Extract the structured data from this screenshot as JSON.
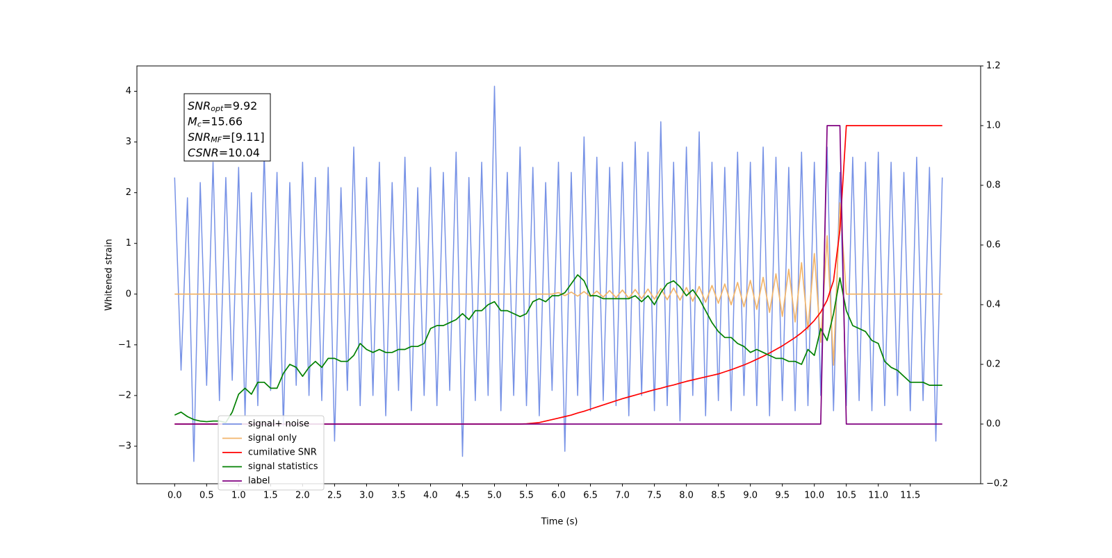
{
  "chart_data": {
    "type": "line",
    "xlabel": "Time (s)",
    "ylabel": "Whitened strain",
    "x": [
      0,
      0.1,
      0.2,
      0.3,
      0.4,
      0.5,
      0.6,
      0.7,
      0.8,
      0.9,
      1,
      1.1,
      1.2,
      1.3,
      1.4,
      1.5,
      1.6,
      1.7,
      1.8,
      1.9,
      2,
      2.1,
      2.2,
      2.3,
      2.4,
      2.5,
      2.6,
      2.7,
      2.8,
      2.9,
      3,
      3.1,
      3.2,
      3.3,
      3.4,
      3.5,
      3.6,
      3.7,
      3.8,
      3.9,
      4,
      4.1,
      4.2,
      4.3,
      4.4,
      4.5,
      4.6,
      4.7,
      4.8,
      4.9,
      5,
      5.1,
      5.2,
      5.3,
      5.4,
      5.5,
      5.6,
      5.7,
      5.8,
      5.9,
      6,
      6.1,
      6.2,
      6.3,
      6.4,
      6.5,
      6.6,
      6.7,
      6.8,
      6.9,
      7,
      7.1,
      7.2,
      7.3,
      7.4,
      7.5,
      7.6,
      7.7,
      7.8,
      7.9,
      8,
      8.1,
      8.2,
      8.3,
      8.4,
      8.5,
      8.6,
      8.7,
      8.8,
      8.9,
      9,
      9.1,
      9.2,
      9.3,
      9.4,
      9.5,
      9.6,
      9.7,
      9.8,
      9.9,
      10,
      10.1,
      10.2,
      10.3,
      10.4,
      10.5,
      10.6,
      10.7,
      10.8,
      10.9,
      11,
      11.1,
      11.2,
      11.3,
      11.4,
      11.5,
      11.6,
      11.7,
      11.8,
      11.9,
      12
    ],
    "series": [
      {
        "name": "signal+ noise",
        "color": "#7792e6",
        "axis": "y",
        "values": [
          2.3,
          -1.5,
          1.9,
          -3.3,
          2.2,
          -1.8,
          2.6,
          -2.1,
          2.3,
          -1.7,
          2.5,
          -2.4,
          2.0,
          -2.2,
          2.8,
          -1.9,
          2.4,
          -2.6,
          2.2,
          -1.8,
          2.6,
          -2.0,
          2.3,
          -2.1,
          2.5,
          -2.9,
          2.1,
          -1.9,
          2.9,
          -2.2,
          2.3,
          -2.0,
          2.6,
          -2.4,
          2.2,
          -1.9,
          2.7,
          -2.3,
          2.1,
          -2.0,
          2.5,
          -2.2,
          2.4,
          -1.9,
          2.8,
          -3.2,
          2.3,
          -2.1,
          2.6,
          -2.0,
          4.1,
          -2.3,
          2.4,
          -2.0,
          2.9,
          -2.2,
          2.5,
          -2.4,
          2.2,
          -1.9,
          2.6,
          -3.1,
          2.4,
          -2.0,
          3.1,
          -2.3,
          2.7,
          -2.1,
          2.5,
          -2.2,
          2.6,
          -2.4,
          3.0,
          -2.0,
          2.8,
          -2.3,
          3.4,
          -2.2,
          2.6,
          -2.5,
          2.9,
          -2.0,
          3.2,
          -2.4,
          2.6,
          -2.1,
          2.5,
          -2.3,
          2.8,
          -2.0,
          2.6,
          -2.2,
          2.9,
          -2.4,
          2.7,
          -2.1,
          2.5,
          -2.3,
          2.8,
          -2.2,
          2.6,
          -2.0,
          2.9,
          -2.3,
          2.4,
          -2.2,
          2.7,
          -2.1,
          2.6,
          -2.3,
          2.8,
          -2.2,
          2.6,
          -2.0,
          2.4,
          -2.3,
          2.7,
          -2.1,
          2.5,
          -2.9,
          2.3
        ]
      },
      {
        "name": "signal only",
        "color": "#f2b56a",
        "axis": "y",
        "values": [
          0,
          0,
          0,
          0,
          0,
          0,
          0,
          0,
          0,
          0,
          0,
          0,
          0,
          0,
          0,
          0,
          0,
          0,
          0,
          0,
          0,
          0,
          0,
          0,
          0,
          0,
          0,
          0,
          0,
          0,
          0,
          0,
          0,
          0,
          0,
          0,
          0,
          0,
          0,
          0,
          0,
          0,
          0,
          0,
          0,
          0,
          0,
          0,
          0,
          0,
          0,
          0,
          0,
          0,
          0,
          0,
          0,
          0,
          0,
          0,
          0.03,
          -0.03,
          0.04,
          -0.04,
          0.05,
          -0.05,
          0.06,
          -0.06,
          0.07,
          -0.07,
          0.08,
          -0.08,
          0.09,
          -0.09,
          0.1,
          -0.1,
          0.11,
          -0.11,
          0.12,
          -0.12,
          0.13,
          -0.14,
          0.15,
          -0.16,
          0.17,
          -0.18,
          0.2,
          -0.21,
          0.23,
          -0.25,
          0.27,
          -0.3,
          0.33,
          -0.36,
          0.4,
          -0.44,
          0.49,
          -0.55,
          0.62,
          -0.7,
          0.8,
          -0.95,
          1.15,
          -1.4,
          1.8,
          0,
          0,
          0,
          0,
          0,
          0,
          0,
          0,
          0,
          0,
          0,
          0,
          0,
          0,
          0,
          0
        ]
      },
      {
        "name": "cumilative SNR",
        "color": "#ff0000",
        "axis": "y2",
        "values": [
          0,
          0,
          0,
          0,
          0,
          0,
          0,
          0,
          0,
          0,
          0,
          0,
          0,
          0,
          0,
          0,
          0,
          0,
          0,
          0,
          0,
          0,
          0,
          0,
          0,
          0,
          0,
          0,
          0,
          0,
          0,
          0,
          0,
          0,
          0,
          0,
          0,
          0,
          0,
          0,
          0,
          0,
          0,
          0,
          0,
          0,
          0,
          0,
          0,
          0,
          0,
          0,
          0,
          0,
          0,
          0.001,
          0.003,
          0.005,
          0.01,
          0.015,
          0.02,
          0.025,
          0.03,
          0.037,
          0.043,
          0.05,
          0.057,
          0.064,
          0.071,
          0.078,
          0.085,
          0.091,
          0.097,
          0.103,
          0.109,
          0.115,
          0.12,
          0.126,
          0.131,
          0.137,
          0.143,
          0.148,
          0.153,
          0.158,
          0.163,
          0.168,
          0.175,
          0.182,
          0.19,
          0.198,
          0.207,
          0.217,
          0.227,
          0.238,
          0.25,
          0.262,
          0.276,
          0.29,
          0.306,
          0.325,
          0.347,
          0.375,
          0.415,
          0.48,
          0.65,
          1,
          1,
          1,
          1,
          1,
          1,
          1,
          1,
          1,
          1,
          1,
          1,
          1,
          1,
          1,
          1
        ]
      },
      {
        "name": "signal statistics",
        "color": "#008000",
        "axis": "y2",
        "values": [
          0.03,
          0.04,
          0.025,
          0.015,
          0.01,
          0.008,
          0.01,
          0.01,
          0.005,
          0.04,
          0.1,
          0.12,
          0.1,
          0.14,
          0.14,
          0.12,
          0.12,
          0.17,
          0.2,
          0.19,
          0.16,
          0.19,
          0.21,
          0.19,
          0.22,
          0.22,
          0.21,
          0.21,
          0.23,
          0.27,
          0.25,
          0.24,
          0.25,
          0.24,
          0.24,
          0.25,
          0.25,
          0.26,
          0.26,
          0.27,
          0.32,
          0.33,
          0.33,
          0.34,
          0.35,
          0.37,
          0.35,
          0.38,
          0.38,
          0.4,
          0.41,
          0.38,
          0.38,
          0.37,
          0.36,
          0.37,
          0.41,
          0.42,
          0.41,
          0.43,
          0.43,
          0.44,
          0.47,
          0.5,
          0.48,
          0.43,
          0.43,
          0.42,
          0.42,
          0.42,
          0.42,
          0.42,
          0.43,
          0.41,
          0.43,
          0.4,
          0.44,
          0.47,
          0.48,
          0.46,
          0.43,
          0.45,
          0.42,
          0.38,
          0.34,
          0.31,
          0.29,
          0.29,
          0.27,
          0.26,
          0.24,
          0.25,
          0.24,
          0.23,
          0.22,
          0.22,
          0.21,
          0.21,
          0.2,
          0.25,
          0.23,
          0.32,
          0.28,
          0.37,
          0.49,
          0.38,
          0.33,
          0.32,
          0.31,
          0.28,
          0.27,
          0.21,
          0.19,
          0.18,
          0.16,
          0.14,
          0.14,
          0.14,
          0.13,
          0.13,
          0.13
        ]
      },
      {
        "name": "label",
        "color": "#800080",
        "axis": "y2",
        "values": [
          0,
          0,
          0,
          0,
          0,
          0,
          0,
          0,
          0,
          0,
          0,
          0,
          0,
          0,
          0,
          0,
          0,
          0,
          0,
          0,
          0,
          0,
          0,
          0,
          0,
          0,
          0,
          0,
          0,
          0,
          0,
          0,
          0,
          0,
          0,
          0,
          0,
          0,
          0,
          0,
          0,
          0,
          0,
          0,
          0,
          0,
          0,
          0,
          0,
          0,
          0,
          0,
          0,
          0,
          0,
          0,
          0,
          0,
          0,
          0,
          0,
          0,
          0,
          0,
          0,
          0,
          0,
          0,
          0,
          0,
          0,
          0,
          0,
          0,
          0,
          0,
          0,
          0,
          0,
          0,
          0,
          0,
          0,
          0,
          0,
          0,
          0,
          0,
          0,
          0,
          0,
          0,
          0,
          0,
          0,
          0,
          0,
          0,
          0,
          0,
          0,
          0,
          1,
          1,
          1,
          0,
          0,
          0,
          0,
          0,
          0,
          0,
          0,
          0,
          0,
          0,
          0,
          0,
          0,
          0,
          0
        ]
      }
    ],
    "xlim": [
      -0.59,
      12.6
    ],
    "xticks": [
      {
        "value": 0,
        "label": "0.0"
      },
      0.5,
      {
        "value": 1,
        "label": "1.0"
      },
      1.5,
      {
        "value": 2,
        "label": "2.0"
      },
      2.5,
      {
        "value": 3,
        "label": "3.0"
      },
      3.5,
      {
        "value": 4,
        "label": "4.0"
      },
      4.5,
      {
        "value": 5,
        "label": "5.0"
      },
      5.5,
      {
        "value": 6,
        "label": "6.0"
      },
      6.5,
      {
        "value": 7,
        "label": "7.0"
      },
      7.5,
      {
        "value": 8,
        "label": "8.0"
      },
      8.5,
      {
        "value": 9,
        "label": "9.0"
      },
      9.5,
      {
        "value": 10,
        "label": "10.0"
      },
      10.5,
      {
        "value": 11,
        "label": "11.0"
      },
      11.5
    ],
    "ylim": [
      -3.74,
      4.5
    ],
    "yticks": [
      {
        "value": -3,
        "label": "−3"
      },
      {
        "value": -2,
        "label": "−2"
      },
      {
        "value": -1,
        "label": "−1"
      },
      0,
      1,
      2,
      3,
      4
    ],
    "y2lim": [
      -0.2,
      1.2
    ],
    "y2ticks": [
      {
        "value": -0.2,
        "label": "−0.2"
      },
      {
        "value": 0,
        "label": "0.0"
      },
      0.2,
      0.4,
      0.6,
      0.8,
      {
        "value": 1,
        "label": "1.0"
      },
      1.2
    ],
    "legend": "lower left",
    "annotations": [
      {
        "main": "SNR",
        "sub": "opt",
        "rest": "=9.92"
      },
      {
        "main": "M",
        "sub": "c",
        "rest": "=15.66"
      },
      {
        "main": "SNR",
        "sub": "MF",
        "rest": "=[9.11]"
      },
      {
        "main": "CSNR",
        "rest": "=10.04"
      }
    ]
  }
}
